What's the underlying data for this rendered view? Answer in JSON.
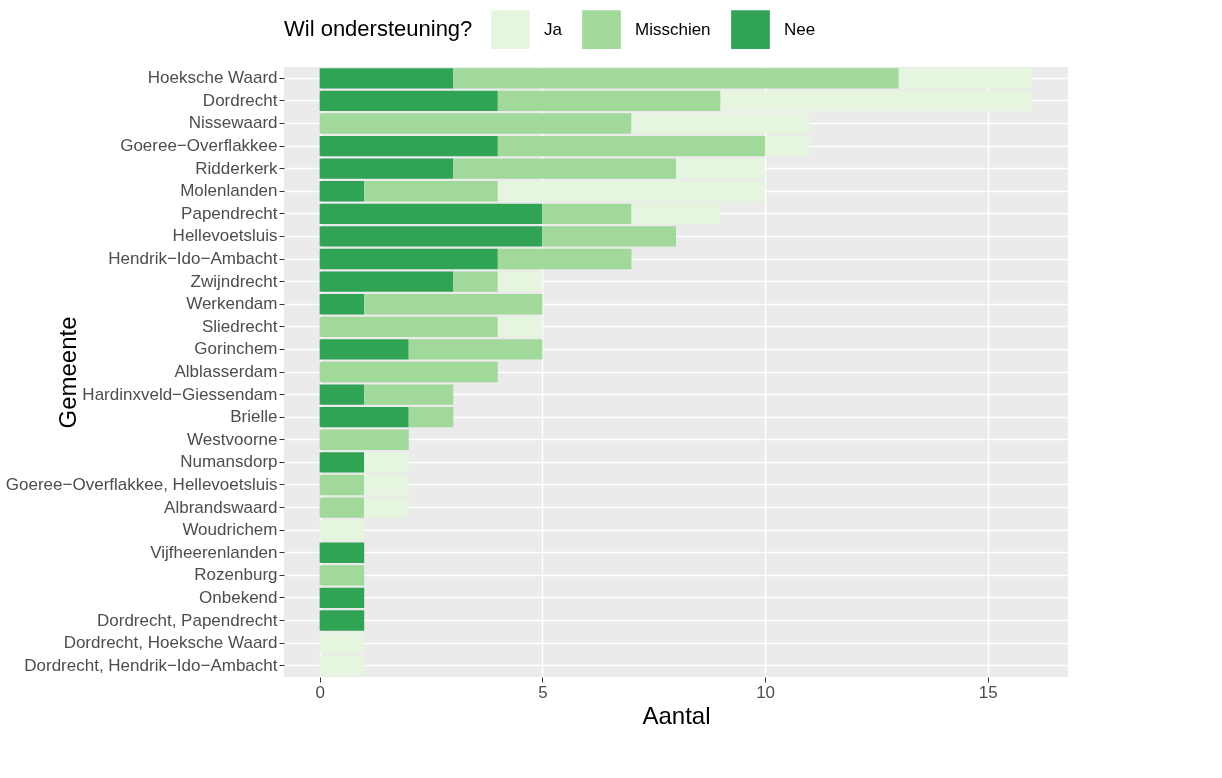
{
  "chart_data": {
    "type": "bar",
    "orientation": "horizontal",
    "stacked": true,
    "xlabel": "Aantal",
    "ylabel": "Gemeente",
    "legend_title": "Wil ondersteuning?",
    "legend": "top",
    "grid": true,
    "categories": [
      "Hoeksche Waard",
      "Dordrecht",
      "Nissewaard",
      "Goeree−Overflakkee",
      "Ridderkerk",
      "Molenlanden",
      "Papendrecht",
      "Hellevoetsluis",
      "Hendrik−Ido−Ambacht",
      "Zwijndrecht",
      "Werkendam",
      "Sliedrecht",
      "Gorinchem",
      "Alblasserdam",
      "Hardinxveld−Giessendam",
      "Brielle",
      "Westvoorne",
      "Numansdorp",
      "Goeree−Overflakkee, Hellevoetsluis",
      "Albrandswaard",
      "Woudrichem",
      "Vijfheerenlanden",
      "Rozenburg",
      "Onbekend",
      "Dordrecht, Papendrecht",
      "Dordrecht, Hoeksche Waard",
      "Dordrecht, Hendrik−Ido−Ambacht"
    ],
    "series": [
      {
        "name": "Nee",
        "color": "#31a354",
        "values": [
          3,
          4,
          0,
          4,
          3,
          1,
          5,
          5,
          4,
          3,
          1,
          0,
          2,
          0,
          1,
          2,
          0,
          1,
          0,
          0,
          0,
          1,
          0,
          1,
          1,
          0,
          0
        ]
      },
      {
        "name": "Misschien",
        "color": "#a1d99b",
        "values": [
          10,
          5,
          7,
          6,
          5,
          3,
          2,
          3,
          3,
          1,
          4,
          4,
          3,
          4,
          2,
          1,
          2,
          0,
          1,
          1,
          0,
          0,
          1,
          0,
          0,
          0,
          0
        ]
      },
      {
        "name": "Ja",
        "color": "#e5f5e0",
        "values": [
          3,
          7,
          4,
          1,
          2,
          6,
          2,
          0,
          0,
          1,
          0,
          1,
          0,
          0,
          0,
          0,
          0,
          1,
          1,
          1,
          1,
          0,
          0,
          0,
          0,
          1,
          1
        ]
      }
    ],
    "xlim": [
      -0.8,
      16.8
    ],
    "xticks": [
      0,
      5,
      10,
      15
    ]
  }
}
